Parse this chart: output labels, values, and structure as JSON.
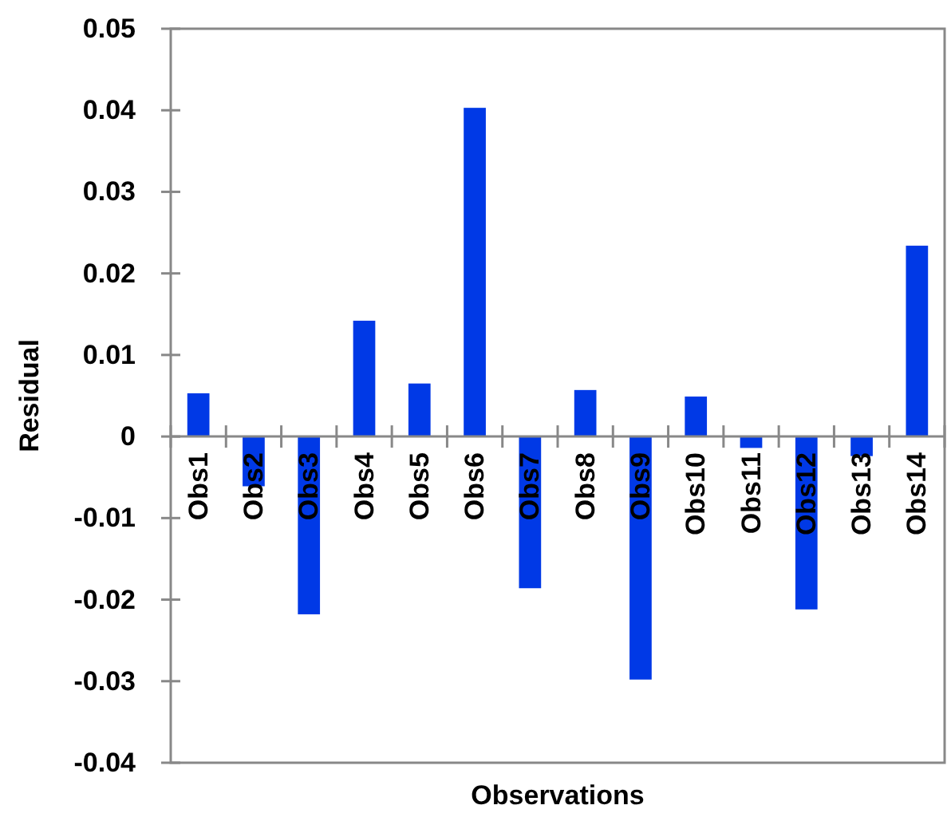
{
  "chart_data": {
    "type": "bar",
    "xlabel": "Observations",
    "ylabel": "Residual",
    "categories": [
      "Obs1",
      "Obs2",
      "Obs3",
      "Obs4",
      "Obs5",
      "Obs6",
      "Obs7",
      "Obs8",
      "Obs9",
      "Obs10",
      "Obs11",
      "Obs12",
      "Obs13",
      "Obs14"
    ],
    "values": [
      0.0053,
      -0.0061,
      -0.0218,
      0.0142,
      0.0065,
      0.0403,
      -0.0186,
      0.0057,
      -0.0298,
      0.0049,
      -0.0014,
      -0.0212,
      -0.0024,
      0.0234
    ],
    "color": "#0039e6",
    "ylim": [
      -0.04,
      0.05
    ],
    "yticks": [
      {
        "value": -0.04,
        "label": "-0.04"
      },
      {
        "value": -0.03,
        "label": "-0.03"
      },
      {
        "value": -0.02,
        "label": "-0.02"
      },
      {
        "value": -0.01,
        "label": "-0.01"
      },
      {
        "value": 0,
        "label": "0"
      },
      {
        "value": 0.01,
        "label": "0.01"
      },
      {
        "value": 0.02,
        "label": "0.02"
      },
      {
        "value": 0.03,
        "label": "0.03"
      },
      {
        "value": 0.04,
        "label": "0.04"
      },
      {
        "value": 0.05,
        "label": "0.05"
      }
    ],
    "grid": false
  }
}
